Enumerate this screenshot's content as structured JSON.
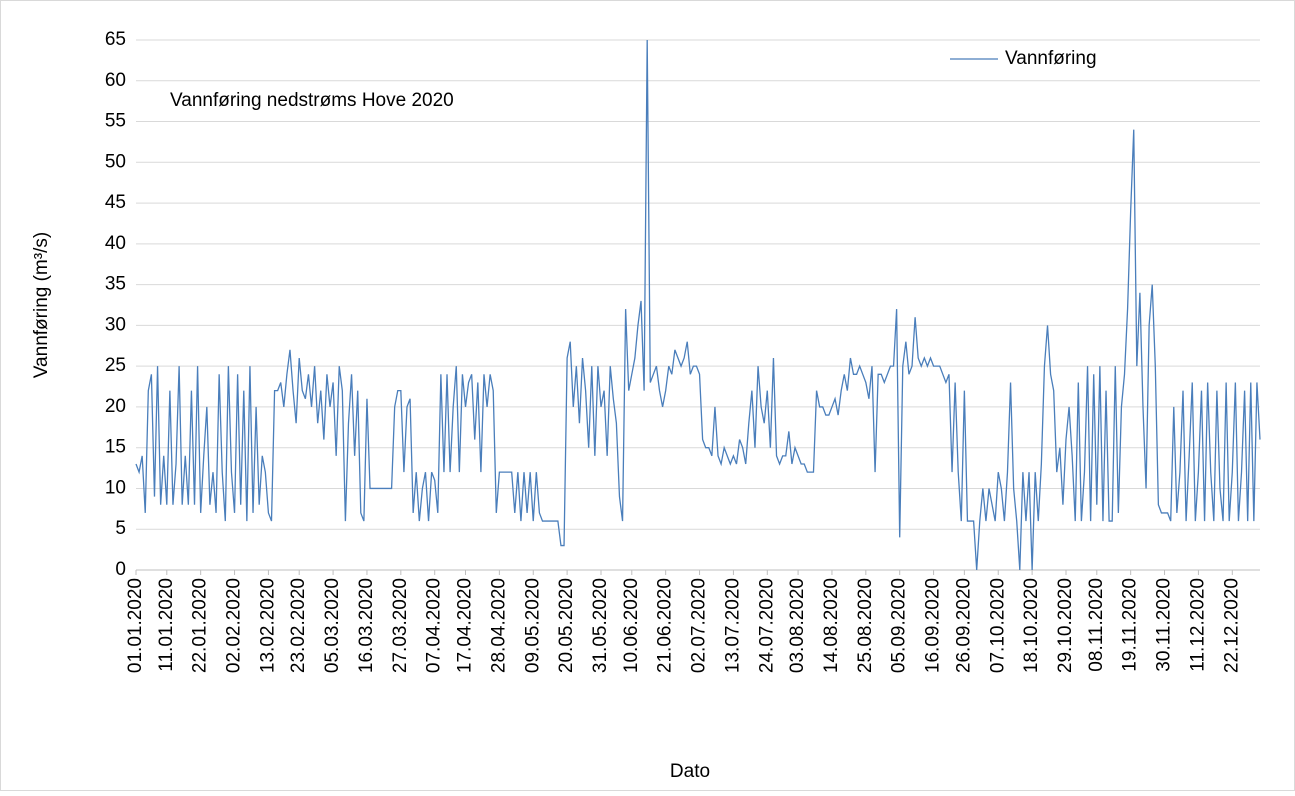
{
  "chart_data": {
    "type": "line",
    "annotation": "Vannføring nedstrøms Hove 2020",
    "x_label": "Dato",
    "y_label": "Vannføring (m³/s)",
    "legend": "top-right",
    "grid": true,
    "ylim": [
      0,
      65
    ],
    "yticks": [
      0,
      5,
      10,
      15,
      20,
      25,
      30,
      35,
      40,
      45,
      50,
      55,
      60,
      65
    ],
    "xlim": [
      "01.01.2020",
      "31.12.2020"
    ],
    "xticks": [
      "01.01.2020",
      "11.01.2020",
      "22.01.2020",
      "02.02.2020",
      "13.02.2020",
      "23.02.2020",
      "05.03.2020",
      "16.03.2020",
      "27.03.2020",
      "07.04.2020",
      "17.04.2020",
      "28.04.2020",
      "09.05.2020",
      "20.05.2020",
      "31.05.2020",
      "10.06.2020",
      "21.06.2020",
      "02.07.2020",
      "13.07.2020",
      "24.07.2020",
      "03.08.2020",
      "14.08.2020",
      "25.08.2020",
      "05.09.2020",
      "16.09.2020",
      "26.09.2020",
      "07.10.2020",
      "18.10.2020",
      "29.10.2020",
      "08.11.2020",
      "19.11.2020",
      "30.11.2020",
      "11.12.2020",
      "22.12.2020"
    ],
    "x": [
      "01.01.2020",
      "02.01.2020",
      "03.01.2020",
      "04.01.2020",
      "05.01.2020",
      "06.01.2020",
      "07.01.2020",
      "08.01.2020",
      "09.01.2020",
      "10.01.2020",
      "11.01.2020",
      "12.01.2020",
      "13.01.2020",
      "14.01.2020",
      "15.01.2020",
      "16.01.2020",
      "17.01.2020",
      "18.01.2020",
      "19.01.2020",
      "20.01.2020",
      "21.01.2020",
      "22.01.2020",
      "23.01.2020",
      "24.01.2020",
      "25.01.2020",
      "26.01.2020",
      "27.01.2020",
      "28.01.2020",
      "29.01.2020",
      "30.01.2020",
      "31.01.2020",
      "01.02.2020",
      "02.02.2020",
      "03.02.2020",
      "04.02.2020",
      "05.02.2020",
      "06.02.2020",
      "07.02.2020",
      "08.02.2020",
      "09.02.2020",
      "10.02.2020",
      "11.02.2020",
      "12.02.2020",
      "13.02.2020",
      "14.02.2020",
      "15.02.2020",
      "16.02.2020",
      "17.02.2020",
      "18.02.2020",
      "19.02.2020",
      "20.02.2020",
      "21.02.2020",
      "22.02.2020",
      "23.02.2020",
      "24.02.2020",
      "25.02.2020",
      "26.02.2020",
      "27.02.2020",
      "28.02.2020",
      "29.02.2020",
      "01.03.2020",
      "02.03.2020",
      "03.03.2020",
      "04.03.2020",
      "05.03.2020",
      "06.03.2020",
      "07.03.2020",
      "08.03.2020",
      "09.03.2020",
      "10.03.2020",
      "11.03.2020",
      "12.03.2020",
      "13.03.2020",
      "14.03.2020",
      "15.03.2020",
      "16.03.2020",
      "17.03.2020",
      "18.03.2020",
      "19.03.2020",
      "20.03.2020",
      "21.03.2020",
      "22.03.2020",
      "23.03.2020",
      "24.03.2020",
      "25.03.2020",
      "26.03.2020",
      "27.03.2020",
      "28.03.2020",
      "29.03.2020",
      "30.03.2020",
      "31.03.2020",
      "01.04.2020",
      "02.04.2020",
      "03.04.2020",
      "04.04.2020",
      "05.04.2020",
      "06.04.2020",
      "07.04.2020",
      "08.04.2020",
      "09.04.2020",
      "10.04.2020",
      "11.04.2020",
      "12.04.2020",
      "13.04.2020",
      "14.04.2020",
      "15.04.2020",
      "16.04.2020",
      "17.04.2020",
      "18.04.2020",
      "19.04.2020",
      "20.04.2020",
      "21.04.2020",
      "22.04.2020",
      "23.04.2020",
      "24.04.2020",
      "25.04.2020",
      "26.04.2020",
      "27.04.2020",
      "28.04.2020",
      "29.04.2020",
      "30.04.2020",
      "01.05.2020",
      "02.05.2020",
      "03.05.2020",
      "04.05.2020",
      "05.05.2020",
      "06.05.2020",
      "07.05.2020",
      "08.05.2020",
      "09.05.2020",
      "10.05.2020",
      "11.05.2020",
      "12.05.2020",
      "13.05.2020",
      "14.05.2020",
      "15.05.2020",
      "16.05.2020",
      "17.05.2020",
      "18.05.2020",
      "19.05.2020",
      "20.05.2020",
      "21.05.2020",
      "22.05.2020",
      "23.05.2020",
      "24.05.2020",
      "25.05.2020",
      "26.05.2020",
      "27.05.2020",
      "28.05.2020",
      "29.05.2020",
      "30.05.2020",
      "31.05.2020",
      "01.06.2020",
      "02.06.2020",
      "03.06.2020",
      "04.06.2020",
      "05.06.2020",
      "06.06.2020",
      "07.06.2020",
      "08.06.2020",
      "09.06.2020",
      "10.06.2020",
      "11.06.2020",
      "12.06.2020",
      "13.06.2020",
      "14.06.2020",
      "15.06.2020",
      "16.06.2020",
      "17.06.2020",
      "18.06.2020",
      "19.06.2020",
      "20.06.2020",
      "21.06.2020",
      "22.06.2020",
      "23.06.2020",
      "24.06.2020",
      "25.06.2020",
      "26.06.2020",
      "27.06.2020",
      "28.06.2020",
      "29.06.2020",
      "30.06.2020",
      "01.07.2020",
      "02.07.2020",
      "03.07.2020",
      "04.07.2020",
      "05.07.2020",
      "06.07.2020",
      "07.07.2020",
      "08.07.2020",
      "09.07.2020",
      "10.07.2020",
      "11.07.2020",
      "12.07.2020",
      "13.07.2020",
      "14.07.2020",
      "15.07.2020",
      "16.07.2020",
      "17.07.2020",
      "18.07.2020",
      "19.07.2020",
      "20.07.2020",
      "21.07.2020",
      "22.07.2020",
      "23.07.2020",
      "24.07.2020",
      "25.07.2020",
      "26.07.2020",
      "27.07.2020",
      "28.07.2020",
      "29.07.2020",
      "30.07.2020",
      "31.07.2020",
      "01.08.2020",
      "02.08.2020",
      "03.08.2020",
      "04.08.2020",
      "05.08.2020",
      "06.08.2020",
      "07.08.2020",
      "08.08.2020",
      "09.08.2020",
      "10.08.2020",
      "11.08.2020",
      "12.08.2020",
      "13.08.2020",
      "14.08.2020",
      "15.08.2020",
      "16.08.2020",
      "17.08.2020",
      "18.08.2020",
      "19.08.2020",
      "20.08.2020",
      "21.08.2020",
      "22.08.2020",
      "23.08.2020",
      "24.08.2020",
      "25.08.2020",
      "26.08.2020",
      "27.08.2020",
      "28.08.2020",
      "29.08.2020",
      "30.08.2020",
      "31.08.2020",
      "01.09.2020",
      "02.09.2020",
      "03.09.2020",
      "04.09.2020",
      "05.09.2020",
      "06.09.2020",
      "07.09.2020",
      "08.09.2020",
      "09.09.2020",
      "10.09.2020",
      "11.09.2020",
      "12.09.2020",
      "13.09.2020",
      "14.09.2020",
      "15.09.2020",
      "16.09.2020",
      "17.09.2020",
      "18.09.2020",
      "19.09.2020",
      "20.09.2020",
      "21.09.2020",
      "22.09.2020",
      "23.09.2020",
      "24.09.2020",
      "25.09.2020",
      "26.09.2020",
      "27.09.2020",
      "28.09.2020",
      "29.09.2020",
      "30.09.2020",
      "01.10.2020",
      "02.10.2020",
      "03.10.2020",
      "04.10.2020",
      "05.10.2020",
      "06.10.2020",
      "07.10.2020",
      "08.10.2020",
      "09.10.2020",
      "10.10.2020",
      "11.10.2020",
      "12.10.2020",
      "13.10.2020",
      "14.10.2020",
      "15.10.2020",
      "16.10.2020",
      "17.10.2020",
      "18.10.2020",
      "19.10.2020",
      "20.10.2020",
      "21.10.2020",
      "22.10.2020",
      "23.10.2020",
      "24.10.2020",
      "25.10.2020",
      "26.10.2020",
      "27.10.2020",
      "28.10.2020",
      "29.10.2020",
      "30.10.2020",
      "31.10.2020",
      "01.11.2020",
      "02.11.2020",
      "03.11.2020",
      "04.11.2020",
      "05.11.2020",
      "06.11.2020",
      "07.11.2020",
      "08.11.2020",
      "09.11.2020",
      "10.11.2020",
      "11.11.2020",
      "12.11.2020",
      "13.11.2020",
      "14.11.2020",
      "15.11.2020",
      "16.11.2020",
      "17.11.2020",
      "18.11.2020",
      "19.11.2020",
      "20.11.2020",
      "21.11.2020",
      "22.11.2020",
      "23.11.2020",
      "24.11.2020",
      "25.11.2020",
      "26.11.2020",
      "27.11.2020",
      "28.11.2020",
      "29.11.2020",
      "30.11.2020",
      "01.12.2020",
      "02.12.2020",
      "03.12.2020",
      "04.12.2020",
      "05.12.2020",
      "06.12.2020",
      "07.12.2020",
      "08.12.2020",
      "09.12.2020",
      "10.12.2020",
      "11.12.2020",
      "12.12.2020",
      "13.12.2020",
      "14.12.2020",
      "15.12.2020",
      "16.12.2020",
      "17.12.2020",
      "18.12.2020",
      "19.12.2020",
      "20.12.2020",
      "21.12.2020",
      "22.12.2020",
      "23.12.2020",
      "24.12.2020",
      "25.12.2020",
      "26.12.2020",
      "27.12.2020",
      "28.12.2020",
      "29.12.2020",
      "30.12.2020",
      "31.12.2020"
    ],
    "series": [
      {
        "name": "Vannføring",
        "color": "#4a7ebb",
        "values": [
          13,
          12,
          14,
          7,
          22,
          24,
          9,
          25,
          8,
          14,
          8,
          22,
          8,
          13,
          25,
          8,
          14,
          8,
          22,
          8,
          25,
          7,
          14,
          20,
          8,
          12,
          7,
          24,
          12,
          6,
          25,
          12,
          7,
          24,
          8,
          22,
          6,
          25,
          7,
          20,
          8,
          14,
          12,
          7,
          6,
          22,
          22,
          23,
          20,
          24,
          27,
          22,
          18,
          26,
          22,
          21,
          24,
          20,
          25,
          18,
          22,
          16,
          24,
          20,
          23,
          14,
          25,
          22,
          6,
          18,
          24,
          14,
          22,
          7,
          6,
          21,
          10,
          10,
          10,
          10,
          10,
          10,
          10,
          10,
          20,
          22,
          22,
          12,
          20,
          21,
          7,
          12,
          6,
          10,
          12,
          6,
          12,
          11,
          7,
          24,
          12,
          24,
          12,
          20,
          25,
          12,
          24,
          20,
          23,
          24,
          16,
          23,
          12,
          24,
          20,
          24,
          22,
          7,
          12,
          12,
          12,
          12,
          12,
          7,
          12,
          6,
          12,
          7,
          12,
          6,
          12,
          7,
          6,
          6,
          6,
          6,
          6,
          6,
          3,
          3,
          26,
          28,
          20,
          25,
          18,
          26,
          22,
          15,
          25,
          14,
          25,
          20,
          22,
          14,
          25,
          21,
          18,
          9,
          6,
          32,
          22,
          24,
          26,
          30,
          33,
          22,
          65,
          23,
          24,
          25,
          22,
          20,
          22,
          25,
          24,
          27,
          26,
          25,
          26,
          28,
          24,
          25,
          25,
          24,
          16,
          15,
          15,
          14,
          20,
          14,
          13,
          15,
          14,
          13,
          14,
          13,
          16,
          15,
          13,
          18,
          22,
          15,
          25,
          20,
          18,
          22,
          15,
          26,
          14,
          13,
          14,
          14,
          17,
          13,
          15,
          14,
          13,
          13,
          12,
          12,
          12,
          22,
          20,
          20,
          19,
          19,
          20,
          21,
          19,
          22,
          24,
          22,
          26,
          24,
          24,
          25,
          24,
          23,
          21,
          25,
          12,
          24,
          24,
          23,
          24,
          25,
          25,
          32,
          4,
          25,
          28,
          24,
          25,
          31,
          26,
          25,
          26,
          25,
          26,
          25,
          25,
          25,
          24,
          23,
          24,
          12,
          23,
          12,
          6,
          22,
          6,
          6,
          6,
          0,
          6,
          10,
          6,
          10,
          8,
          6,
          12,
          10,
          6,
          12,
          23,
          10,
          6,
          0,
          12,
          6,
          12,
          0,
          12,
          6,
          13,
          25,
          30,
          24,
          22,
          12,
          15,
          8,
          16,
          20,
          14,
          6,
          23,
          6,
          12,
          25,
          6,
          24,
          8,
          25,
          6,
          22,
          6,
          6,
          25,
          7,
          20,
          24,
          32,
          44,
          54,
          25,
          34,
          20,
          10,
          30,
          35,
          25,
          8,
          7,
          7,
          7,
          6,
          20,
          7,
          12,
          22,
          6,
          14,
          23,
          6,
          12,
          22,
          6,
          23,
          12,
          6,
          22,
          10,
          6,
          23,
          6,
          12,
          23,
          6,
          12,
          22,
          6,
          23,
          6,
          23,
          16
        ]
      }
    ]
  }
}
